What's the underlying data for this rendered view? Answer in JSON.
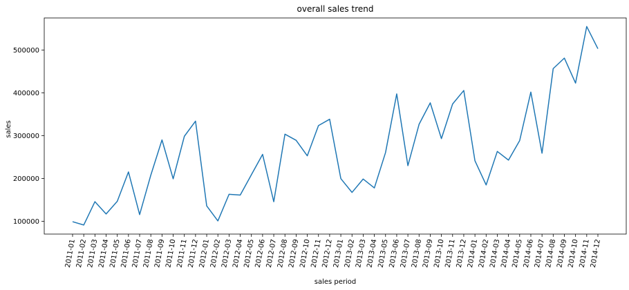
{
  "chart_data": {
    "type": "line",
    "title": "overall sales trend",
    "xlabel": "sales period",
    "ylabel": "sales",
    "ylim": [
      70000,
      575000
    ],
    "yticks": [
      100000,
      200000,
      300000,
      400000,
      500000
    ],
    "yticklabels": [
      "100000",
      "200000",
      "300000",
      "400000",
      "500000"
    ],
    "grid": false,
    "line_color": "#1f77b4",
    "categories": [
      "2011-01",
      "2011-02",
      "2011-03",
      "2011-04",
      "2011-05",
      "2011-06",
      "2011-07",
      "2011-08",
      "2011-09",
      "2011-10",
      "2011-11",
      "2011-12",
      "2012-01",
      "2012-02",
      "2012-03",
      "2012-04",
      "2012-05",
      "2012-06",
      "2012-07",
      "2012-08",
      "2012-09",
      "2012-10",
      "2012-11",
      "2012-12",
      "2013-01",
      "2013-02",
      "2013-03",
      "2013-04",
      "2013-05",
      "2013-06",
      "2013-07",
      "2013-08",
      "2013-09",
      "2013-10",
      "2013-11",
      "2013-12",
      "2014-01",
      "2014-02",
      "2014-03",
      "2014-04",
      "2014-05",
      "2014-06",
      "2014-07",
      "2014-08",
      "2014-09",
      "2014-10",
      "2014-11",
      "2014-12"
    ],
    "series": [
      {
        "values": [
          98900,
          91200,
          145700,
          116900,
          146700,
          215200,
          115500,
          207800,
          290000,
          199100,
          298500,
          333900,
          135800,
          100800,
          163000,
          161100,
          208700,
          256200,
          145600,
          303400,
          289100,
          252900,
          323500,
          338300,
          199600,
          167300,
          198600,
          177800,
          260500,
          397500,
          229900,
          326500,
          376600,
          293000,
          373900,
          405500,
          241300,
          184800,
          263100,
          242800,
          288400,
          401800,
          258900,
          456600,
          481200,
          422800,
          555000,
          503100
        ]
      }
    ]
  }
}
